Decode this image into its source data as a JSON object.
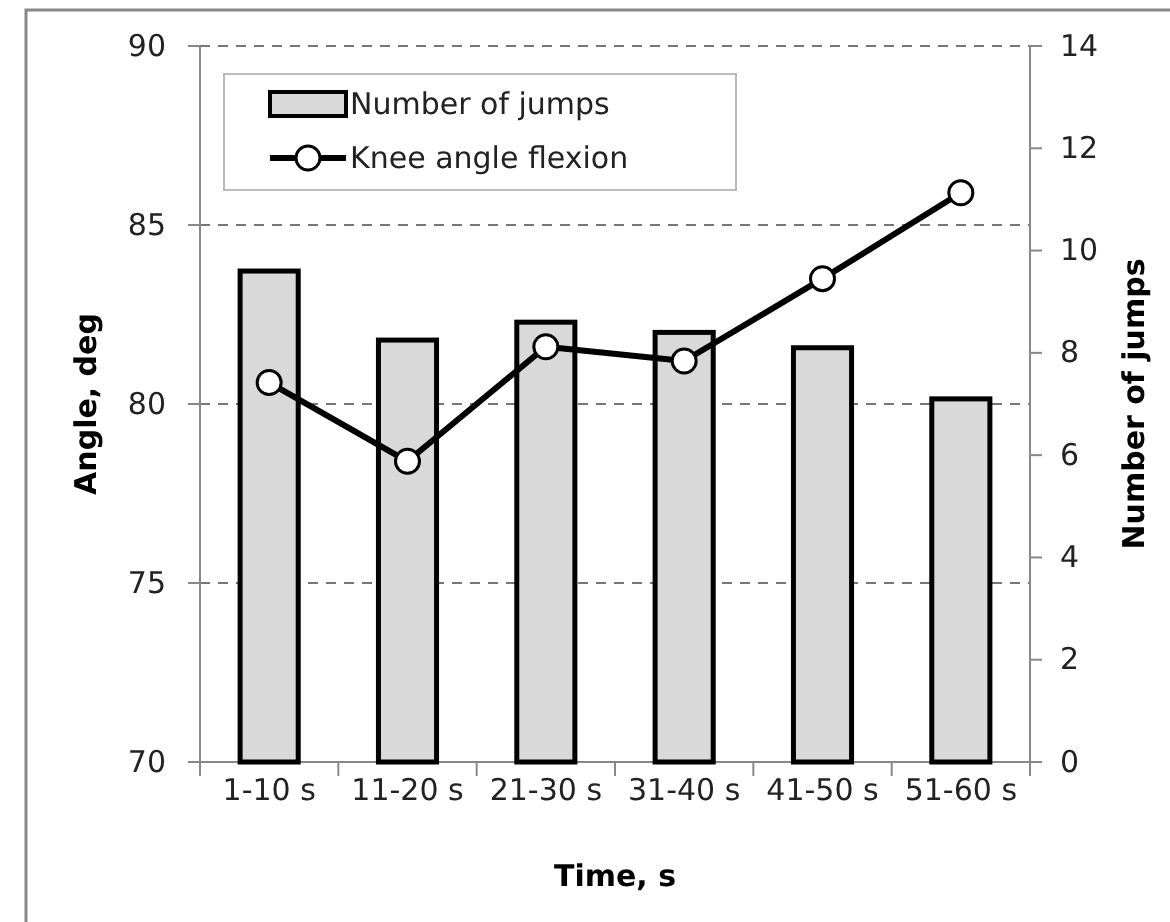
{
  "chart_data": {
    "type": "bar",
    "categories": [
      "1-10 s",
      "11-20 s",
      "21-30 s",
      "31-40 s",
      "41-50 s",
      "51-60 s"
    ],
    "xlabel": "Time, s",
    "ylabel": "Angle, deg",
    "y2label": "Number of jumps",
    "ylim": [
      70,
      90
    ],
    "yticks": [
      70,
      75,
      80,
      85,
      90
    ],
    "y2lim": [
      0,
      14
    ],
    "y2ticks": [
      0,
      2,
      4,
      6,
      8,
      10,
      12,
      14
    ],
    "grid": "y",
    "legend": "top left",
    "series": [
      {
        "name": "Number of jumps",
        "axis": "y2",
        "color": "#d9d9d9",
        "values": [
          9.6,
          8.25,
          8.6,
          8.4,
          8.1,
          7.1
        ]
      },
      {
        "name": "Knee angle flexion",
        "type": "line",
        "axis": "y",
        "color": "#000000",
        "marker": "circle",
        "values": [
          80.6,
          78.4,
          81.6,
          81.2,
          83.5,
          85.9
        ]
      }
    ]
  }
}
